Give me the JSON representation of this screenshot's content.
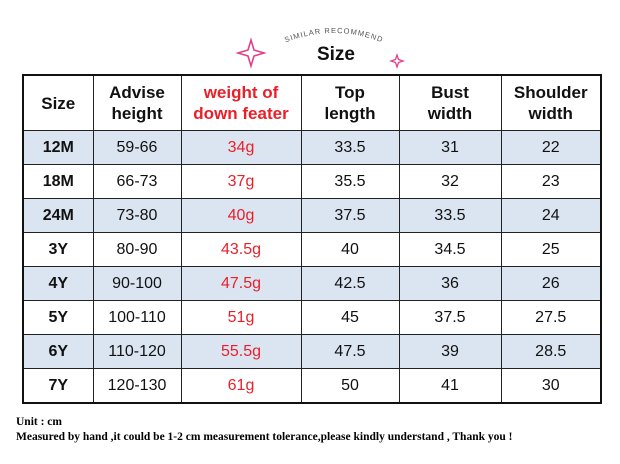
{
  "header": {
    "subtitle": "SIMILAR RECOMMEND",
    "title": "Size"
  },
  "table": {
    "columns": [
      "Size",
      "Advise\nheight",
      "weight of\ndown feater",
      "Top\nlength",
      "Bust\nwidth",
      "Shoulder\nwidth"
    ],
    "rows": [
      [
        "12M",
        "59-66",
        "34g",
        "33.5",
        "31",
        "22"
      ],
      [
        "18M",
        "66-73",
        "37g",
        "35.5",
        "32",
        "23"
      ],
      [
        "24M",
        "73-80",
        "40g",
        "37.5",
        "33.5",
        "24"
      ],
      [
        "3Y",
        "80-90",
        "43.5g",
        "40",
        "34.5",
        "25"
      ],
      [
        "4Y",
        "90-100",
        "47.5g",
        "42.5",
        "36",
        "26"
      ],
      [
        "5Y",
        "100-110",
        "51g",
        "45",
        "37.5",
        "27.5"
      ],
      [
        "6Y",
        "110-120",
        "55.5g",
        "47.5",
        "39",
        "28.5"
      ],
      [
        "7Y",
        "120-130",
        "61g",
        "50",
        "41",
        "30"
      ]
    ]
  },
  "footer": {
    "unit": "Unit : cm",
    "note": "Measured by hand ,it could be 1-2 cm measurement tolerance,please kindly understand , Thank you !"
  }
}
